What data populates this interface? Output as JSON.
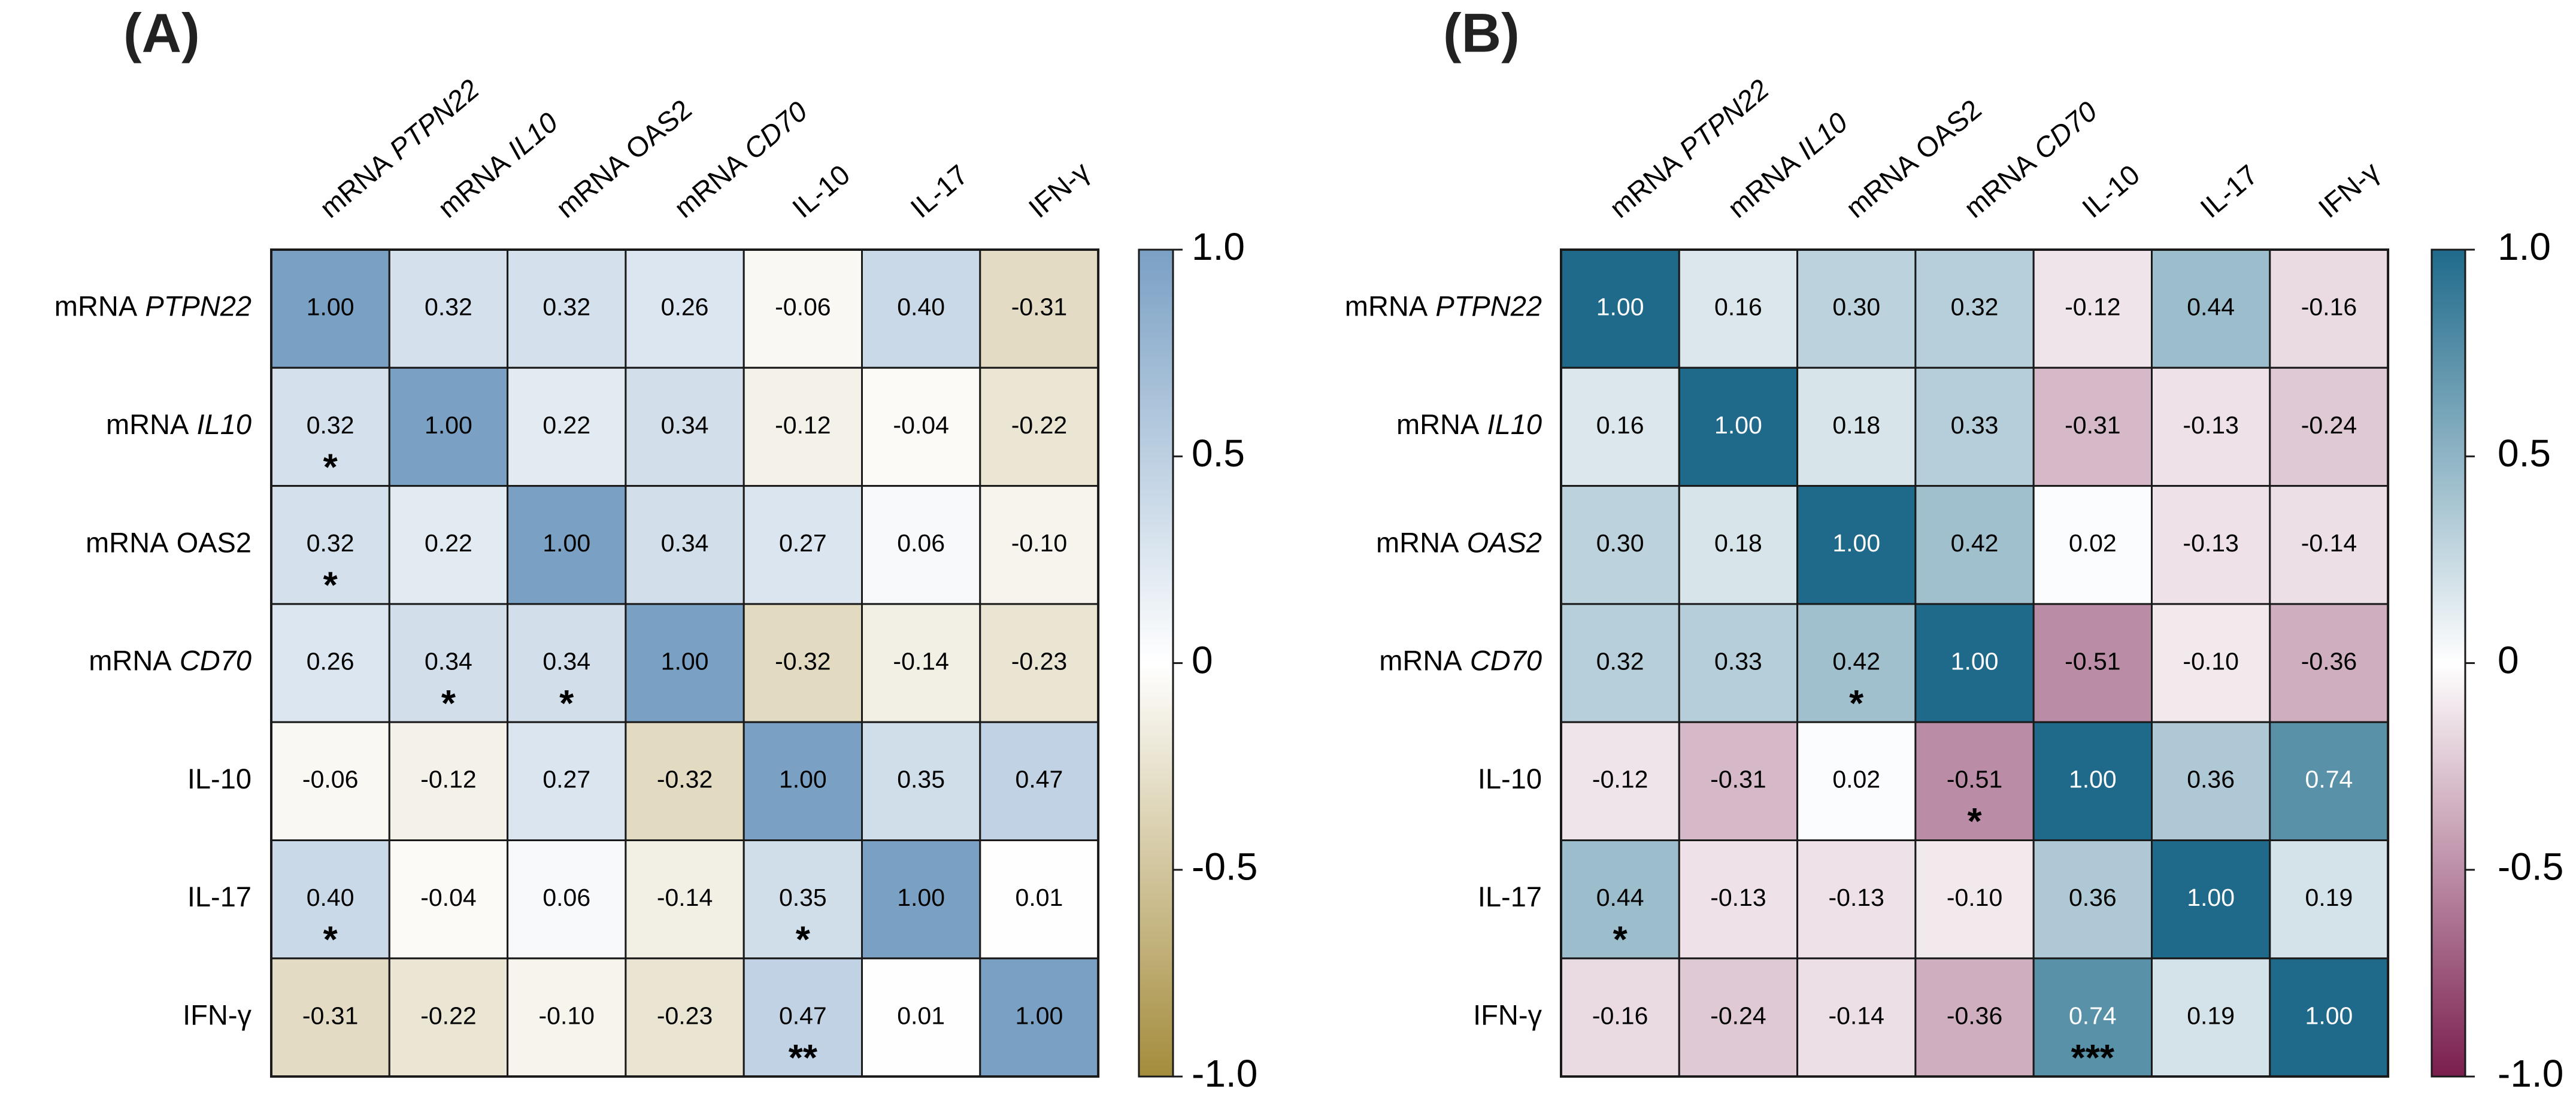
{
  "chart_data": [
    {
      "type": "heatmap",
      "title": "(A)",
      "rows": [
        {
          "parts": [
            {
              "text": "mRNA"
            },
            {
              "text": "PTPN22",
              "italic": true
            }
          ]
        },
        {
          "parts": [
            {
              "text": "mRNA"
            },
            {
              "text": "IL10",
              "italic": true
            }
          ]
        },
        {
          "parts": [
            {
              "text": "mRNA"
            },
            {
              "text": "OAS2"
            }
          ]
        },
        {
          "parts": [
            {
              "text": "mRNA"
            },
            {
              "text": "CD70",
              "italic": true
            }
          ]
        },
        {
          "parts": [
            {
              "text": "IL-10"
            }
          ]
        },
        {
          "parts": [
            {
              "text": "IL-17"
            }
          ]
        },
        {
          "parts": [
            {
              "text": "IFN-γ"
            }
          ]
        }
      ],
      "columns": [
        {
          "parts": [
            {
              "text": "mRNA"
            },
            {
              "text": "PTPN22",
              "italic": true
            }
          ]
        },
        {
          "parts": [
            {
              "text": "mRNA"
            },
            {
              "text": "IL10",
              "italic": true
            }
          ]
        },
        {
          "parts": [
            {
              "text": "mRNA"
            },
            {
              "text": "OAS2"
            }
          ]
        },
        {
          "parts": [
            {
              "text": "mRNA"
            },
            {
              "text": "CD70",
              "italic": true
            }
          ]
        },
        {
          "parts": [
            {
              "text": "IL-10"
            }
          ]
        },
        {
          "parts": [
            {
              "text": "IL-17"
            }
          ]
        },
        {
          "parts": [
            {
              "text": "IFN-γ"
            }
          ]
        }
      ],
      "values": [
        [
          1,
          0.32,
          0.32,
          0.26,
          -0.06,
          0.4,
          -0.31
        ],
        [
          0.32,
          1,
          0.22,
          0.34,
          -0.12,
          -0.04,
          -0.22
        ],
        [
          0.32,
          0.22,
          1,
          0.34,
          0.27,
          0.06,
          -0.1
        ],
        [
          0.26,
          0.34,
          0.34,
          1,
          -0.32,
          -0.14,
          -0.23
        ],
        [
          -0.06,
          -0.12,
          0.27,
          -0.32,
          1,
          0.35,
          0.47
        ],
        [
          0.4,
          -0.04,
          0.06,
          -0.14,
          0.35,
          1,
          0.01
        ],
        [
          -0.31,
          -0.22,
          -0.1,
          -0.23,
          0.47,
          0.01,
          1
        ]
      ],
      "value_labels": [
        [
          "1.00",
          "0.32",
          "0.32",
          "0.26",
          "-0.06",
          "0.40",
          "-0.31"
        ],
        [
          "0.32",
          "1.00",
          "0.22",
          "0.34",
          "-0.12",
          "-0.04",
          "-0.22"
        ],
        [
          "0.32",
          "0.22",
          "1.00",
          "0.34",
          "0.27",
          "0.06",
          "-0.10"
        ],
        [
          "0.26",
          "0.34",
          "0.34",
          "1.00",
          "-0.32",
          "-0.14",
          "-0.23"
        ],
        [
          "-0.06",
          "-0.12",
          "0.27",
          "-0.32",
          "1.00",
          "0.35",
          "0.47"
        ],
        [
          "0.40",
          "-0.04",
          "0.06",
          "-0.14",
          "0.35",
          "1.00",
          "0.01"
        ],
        [
          "-0.31",
          "-0.22",
          "-0.10",
          "-0.23",
          "0.47",
          "0.01",
          "1.00"
        ]
      ],
      "stars": [
        [
          null,
          null,
          null,
          null,
          null,
          null,
          null
        ],
        [
          "*",
          null,
          null,
          null,
          null,
          null,
          null
        ],
        [
          "*",
          null,
          null,
          null,
          null,
          null,
          null
        ],
        [
          null,
          "*",
          "*",
          null,
          null,
          null,
          null
        ],
        [
          null,
          null,
          null,
          null,
          null,
          null,
          null
        ],
        [
          "*",
          null,
          null,
          null,
          "*",
          null,
          null
        ],
        [
          null,
          null,
          null,
          null,
          "**",
          null,
          null
        ]
      ],
      "colorbar": {
        "lim": [
          -1,
          1
        ],
        "ticks": [
          {
            "value": 1,
            "label": "1.0"
          },
          0.5,
          0,
          -0.5,
          {
            "value": -1,
            "label": "-1.0"
          }
        ],
        "colors": [
          "#a48c3c",
          "#ffffff",
          "#7aa0c4"
        ]
      }
    },
    {
      "type": "heatmap",
      "title": "(B)",
      "rows": [
        {
          "parts": [
            {
              "text": "mRNA"
            },
            {
              "text": "PTPN22",
              "italic": true
            }
          ]
        },
        {
          "parts": [
            {
              "text": "mRNA"
            },
            {
              "text": "IL10",
              "italic": true
            }
          ]
        },
        {
          "parts": [
            {
              "text": "mRNA"
            },
            {
              "text": "OAS2",
              "italic": true
            }
          ]
        },
        {
          "parts": [
            {
              "text": "mRNA"
            },
            {
              "text": "CD70",
              "italic": true
            }
          ]
        },
        {
          "parts": [
            {
              "text": "IL-10"
            }
          ]
        },
        {
          "parts": [
            {
              "text": "IL-17"
            }
          ]
        },
        {
          "parts": [
            {
              "text": "IFN-γ"
            }
          ]
        }
      ],
      "columns": [
        {
          "parts": [
            {
              "text": "mRNA"
            },
            {
              "text": "PTPN22",
              "italic": true
            }
          ]
        },
        {
          "parts": [
            {
              "text": "mRNA"
            },
            {
              "text": "IL10",
              "italic": true
            }
          ]
        },
        {
          "parts": [
            {
              "text": "mRNA"
            },
            {
              "text": "OAS2"
            }
          ]
        },
        {
          "parts": [
            {
              "text": "mRNA"
            },
            {
              "text": "CD70",
              "italic": true
            }
          ]
        },
        {
          "parts": [
            {
              "text": "IL-10"
            }
          ]
        },
        {
          "parts": [
            {
              "text": "IL-17"
            }
          ]
        },
        {
          "parts": [
            {
              "text": "IFN-γ"
            }
          ]
        }
      ],
      "values": [
        [
          1,
          0.16,
          0.3,
          0.32,
          -0.12,
          0.44,
          -0.16
        ],
        [
          0.16,
          1,
          0.18,
          0.33,
          -0.31,
          -0.13,
          -0.24
        ],
        [
          0.3,
          0.18,
          1,
          0.42,
          0.02,
          -0.13,
          -0.14
        ],
        [
          0.32,
          0.33,
          0.42,
          1,
          -0.51,
          -0.1,
          -0.36
        ],
        [
          -0.12,
          -0.31,
          0.02,
          -0.51,
          1,
          0.36,
          0.74
        ],
        [
          0.44,
          -0.13,
          -0.13,
          -0.1,
          0.36,
          1,
          0.19
        ],
        [
          -0.16,
          -0.24,
          -0.14,
          -0.36,
          0.74,
          0.19,
          1
        ]
      ],
      "value_labels": [
        [
          "1.00",
          "0.16",
          "0.30",
          "0.32",
          "-0.12",
          "0.44",
          "-0.16"
        ],
        [
          "0.16",
          "1.00",
          "0.18",
          "0.33",
          "-0.31",
          "-0.13",
          "-0.24"
        ],
        [
          "0.30",
          "0.18",
          "1.00",
          "0.42",
          "0.02",
          "-0.13",
          "-0.14"
        ],
        [
          "0.32",
          "0.33",
          "0.42",
          "1.00",
          "-0.51",
          "-0.10",
          "-0.36"
        ],
        [
          "-0.12",
          "-0.31",
          "0.02",
          "-0.51",
          "1.00",
          "0.36",
          "0.74"
        ],
        [
          "0.44",
          "-0.13",
          "-0.13",
          "-0.10",
          "0.36",
          "1.00",
          "0.19"
        ],
        [
          "-0.16",
          "-0.24",
          "-0.14",
          "-0.36",
          "0.74",
          "0.19",
          "1.00"
        ]
      ],
      "stars": [
        [
          null,
          null,
          null,
          null,
          null,
          null,
          null
        ],
        [
          null,
          null,
          null,
          null,
          null,
          null,
          null
        ],
        [
          null,
          null,
          null,
          null,
          null,
          null,
          null
        ],
        [
          null,
          null,
          "*",
          null,
          null,
          null,
          null
        ],
        [
          null,
          null,
          null,
          "*",
          null,
          null,
          null
        ],
        [
          "*",
          null,
          null,
          null,
          null,
          null,
          null
        ],
        [
          null,
          null,
          null,
          null,
          "***",
          null,
          null
        ]
      ],
      "colorbar": {
        "lim": [
          -1,
          1
        ],
        "ticks": [
          {
            "value": 1,
            "label": "1.0"
          },
          0.5,
          0,
          -0.5,
          {
            "value": -1,
            "label": "-1.0"
          }
        ],
        "colors": [
          "#7a1e4e",
          "#ffffff",
          "#1f6a8b"
        ]
      }
    }
  ]
}
